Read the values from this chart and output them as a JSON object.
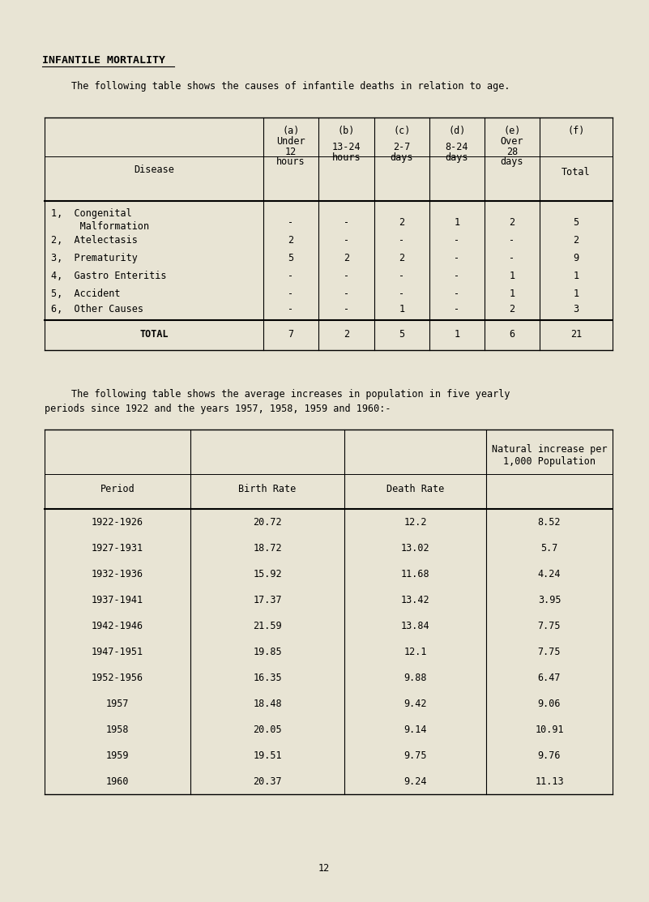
{
  "bg_color": "#e8e4d4",
  "title": "INFANTILE MORTALITY",
  "subtitle1": "The following table shows the causes of infantile deaths in relation to age.",
  "subtitle2_line1": "The following table shows the average increases in population in five yearly",
  "subtitle2_line2": "periods since 1922 and the years 1957, 1958, 1959 and 1960:-",
  "page_number": "12",
  "table1": {
    "rows": [
      [
        "1,  Congenital",
        "-",
        "-",
        "2",
        "1",
        "2",
        "5"
      ],
      [
        "      Malformation",
        "",
        "",
        "",
        "",
        "",
        ""
      ],
      [
        "2,  Atelectasis",
        "2",
        "-",
        "-",
        "-",
        "-",
        "2"
      ],
      [
        "3,  Prematurity",
        "5",
        "2",
        "2",
        "-",
        "-",
        "9"
      ],
      [
        "4,  Gastro Enteritis",
        "-",
        "-",
        "-",
        "-",
        "1",
        "1"
      ],
      [
        "5,  Accident",
        "-",
        "-",
        "-",
        "-",
        "1",
        "1"
      ],
      [
        "6,  Other Causes",
        "-",
        "-",
        "1",
        "-",
        "2",
        "3"
      ]
    ],
    "total_row": [
      "TOTAL",
      "7",
      "2",
      "5",
      "1",
      "6",
      "21"
    ]
  },
  "table2": {
    "rows": [
      [
        "1922-1926",
        "20.72",
        "12.2",
        "8.52"
      ],
      [
        "1927-1931",
        "18.72",
        "13.02",
        "5.7"
      ],
      [
        "1932-1936",
        "15.92",
        "11.68",
        "4.24"
      ],
      [
        "1937-1941",
        "17.37",
        "13.42",
        "3.95"
      ],
      [
        "1942-1946",
        "21.59",
        "13.84",
        "7.75"
      ],
      [
        "1947-1951",
        "19.85",
        "12.1",
        "7.75"
      ],
      [
        "1952-1956",
        "16.35",
        "9.88",
        "6.47"
      ],
      [
        "1957",
        "18.48",
        "9.42",
        "9.06"
      ],
      [
        "1958",
        "20.05",
        "9.14",
        "10.91"
      ],
      [
        "1959",
        "19.51",
        "9.75",
        "9.76"
      ],
      [
        "1960",
        "20.37",
        "9.24",
        "11.13"
      ]
    ]
  },
  "font_size": 8.5,
  "title_font_size": 9.5
}
